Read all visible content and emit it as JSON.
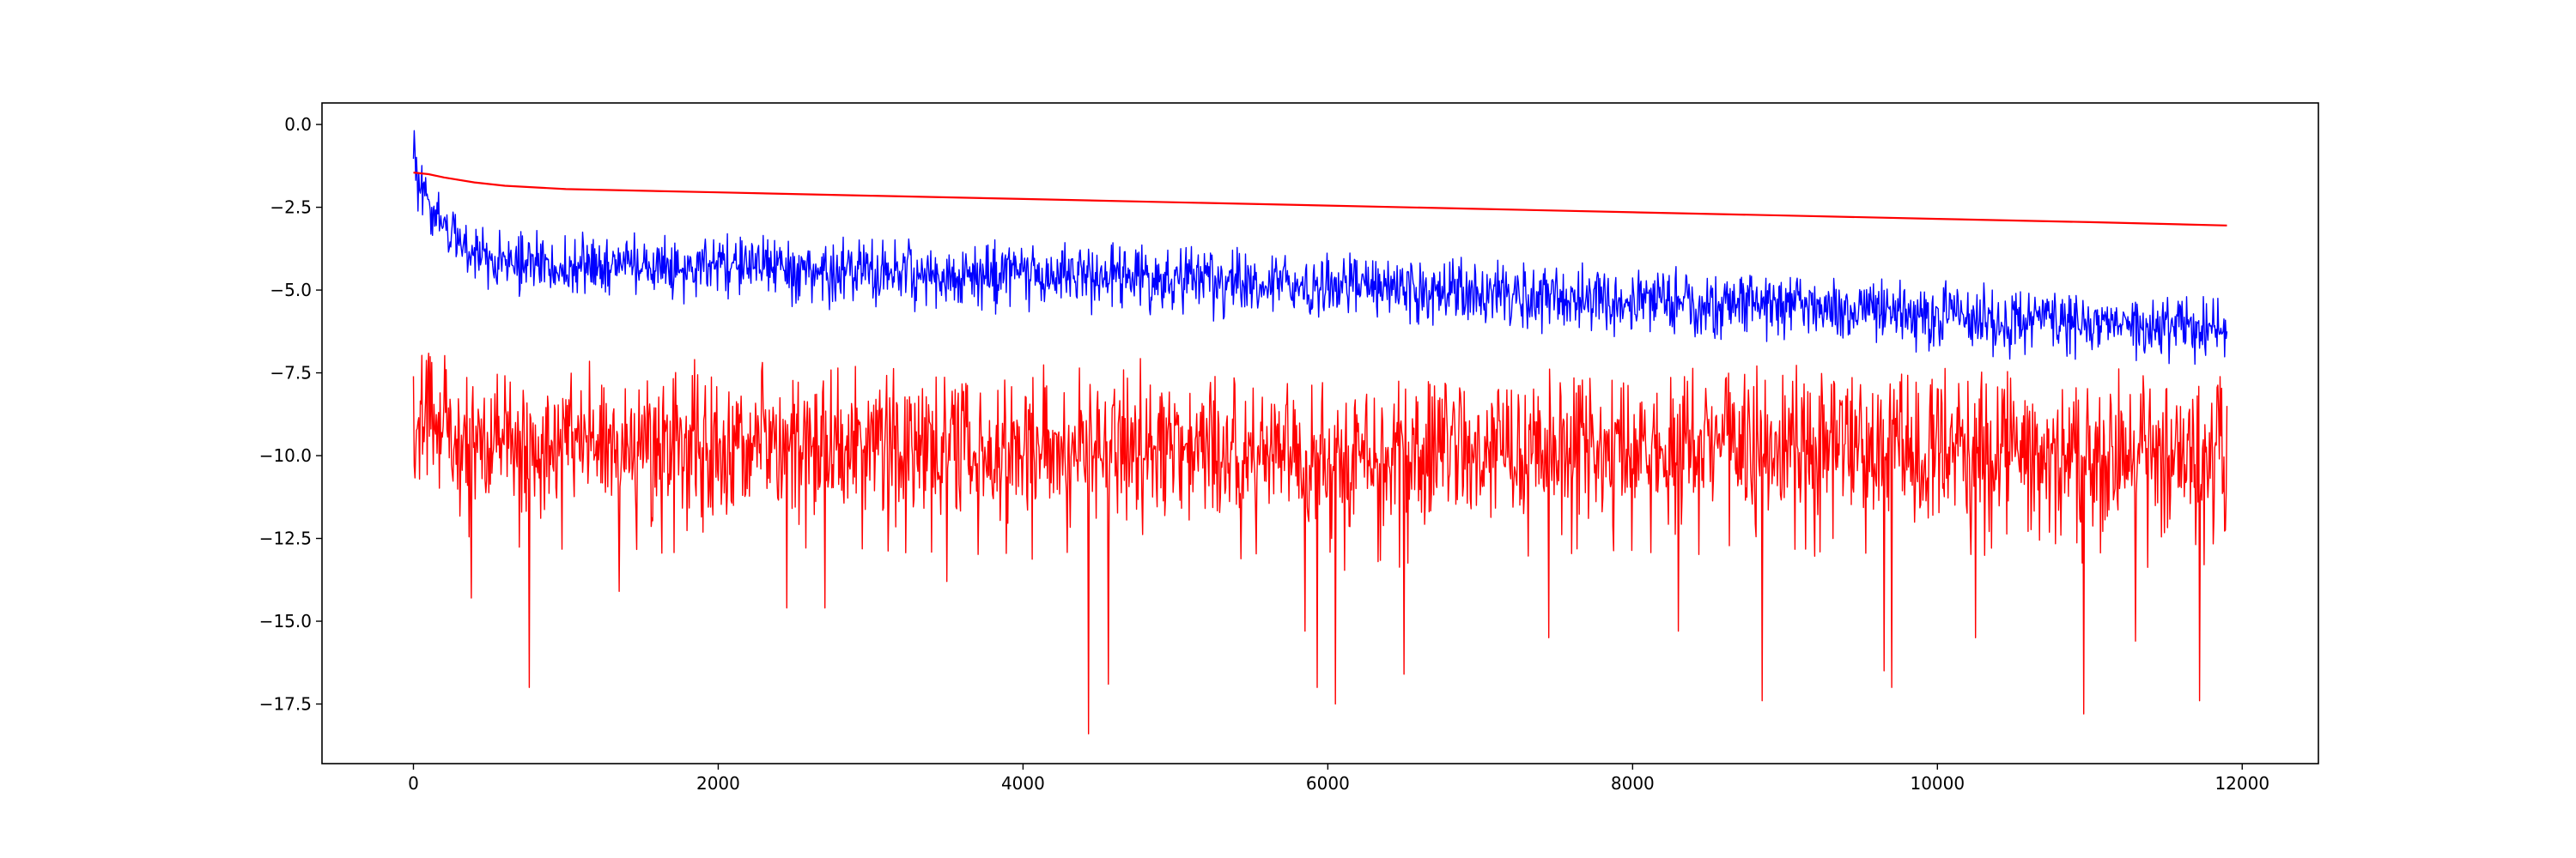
{
  "chart_data": {
    "type": "line",
    "title": "",
    "xlabel": "",
    "ylabel": "",
    "xlim": [
      -600,
      12500
    ],
    "ylim": [
      -19.3,
      0.65
    ],
    "grid": false,
    "legend": "none",
    "x_ticks": [
      {
        "value": 0,
        "label": "0"
      },
      {
        "value": 2000,
        "label": "2000"
      },
      {
        "value": 4000,
        "label": "4000"
      },
      {
        "value": 6000,
        "label": "6000"
      },
      {
        "value": 8000,
        "label": "8000"
      },
      {
        "value": 10000,
        "label": "10000"
      },
      {
        "value": 12000,
        "label": "12000"
      }
    ],
    "y_ticks": [
      {
        "value": 0,
        "label": "0.0"
      },
      {
        "value": -2.5,
        "label": "−2.5"
      },
      {
        "value": -5,
        "label": "−5.0"
      },
      {
        "value": -7.5,
        "label": "−7.5"
      },
      {
        "value": -10,
        "label": "−10.0"
      },
      {
        "value": -12.5,
        "label": "−12.5"
      },
      {
        "value": -15,
        "label": "−15.0"
      },
      {
        "value": -17.5,
        "label": "−17.5"
      }
    ],
    "series": [
      {
        "color": "#0000ff",
        "description": "noisy blue series, rapid initial drop then slow decline",
        "x": [
          0,
          50,
          100,
          200,
          300,
          400,
          500,
          700,
          1000,
          1500,
          2000,
          2500,
          3000,
          3500,
          4000,
          4500,
          5000,
          5500,
          6000,
          6500,
          7000,
          7500,
          8000,
          8500,
          9000,
          9500,
          10000,
          10500,
          11000,
          11500,
          11900
        ],
        "mean": [
          -0.8,
          -1.8,
          -2.4,
          -3.1,
          -3.5,
          -3.8,
          -4.0,
          -4.2,
          -4.3,
          -4.3,
          -4.3,
          -4.3,
          -4.5,
          -4.5,
          -4.6,
          -4.6,
          -4.7,
          -4.8,
          -4.9,
          -5.0,
          -5.1,
          -5.2,
          -5.3,
          -5.4,
          -5.5,
          -5.6,
          -5.8,
          -5.9,
          -6.0,
          -6.1,
          -6.1
        ],
        "band_low": [
          -2.5,
          -3.0,
          -3.4,
          -4.1,
          -4.5,
          -4.9,
          -5.1,
          -5.3,
          -5.4,
          -5.4,
          -5.5,
          -5.5,
          -5.7,
          -5.7,
          -5.8,
          -5.8,
          -5.9,
          -6.0,
          -6.1,
          -6.2,
          -6.3,
          -6.4,
          -6.5,
          -6.6,
          -6.7,
          -6.8,
          -7.0,
          -7.1,
          -7.2,
          -7.3,
          -7.3
        ],
        "band_high": [
          -0.2,
          -0.6,
          -1.3,
          -2.3,
          -2.7,
          -2.9,
          -3.0,
          -3.1,
          -3.2,
          -3.2,
          -3.2,
          -3.2,
          -3.3,
          -3.4,
          -3.5,
          -3.5,
          -3.6,
          -3.7,
          -3.8,
          -3.9,
          -4.0,
          -4.1,
          -4.2,
          -4.3,
          -4.4,
          -4.5,
          -4.7,
          -4.8,
          -4.9,
          -5.0,
          -5.0
        ],
        "n_points": 11900
      },
      {
        "color": "#ff0000",
        "description": "smooth red curve, slow steady decline",
        "x": [
          0,
          100,
          200,
          400,
          600,
          1000,
          2000,
          3000,
          4000,
          5000,
          6000,
          7000,
          8000,
          9000,
          10000,
          11000,
          11900
        ],
        "y": [
          -1.45,
          -1.5,
          -1.6,
          -1.75,
          -1.85,
          -1.95,
          -2.05,
          -2.15,
          -2.25,
          -2.35,
          -2.45,
          -2.55,
          -2.65,
          -2.75,
          -2.85,
          -2.95,
          -3.05
        ]
      },
      {
        "color": "#ff0000",
        "description": "noisy red series around -10 with deep downward spikes",
        "x": [
          0,
          1000,
          2000,
          3000,
          4000,
          5000,
          6000,
          7000,
          8000,
          9000,
          10000,
          11000,
          11900
        ],
        "mean": [
          -9.2,
          -9.8,
          -9.6,
          -9.7,
          -9.9,
          -9.8,
          -10.1,
          -10.0,
          -9.8,
          -9.7,
          -9.9,
          -10.0,
          -10.1
        ],
        "band_low": [
          -12.5,
          -13.0,
          -13.0,
          -13.0,
          -13.2,
          -13.0,
          -13.5,
          -13.3,
          -13.0,
          -13.0,
          -13.2,
          -13.5,
          -13.6
        ],
        "band_high": [
          -6.8,
          -7.8,
          -7.5,
          -7.6,
          -7.7,
          -7.6,
          -7.9,
          -7.8,
          -7.6,
          -7.5,
          -7.7,
          -7.8,
          -7.9
        ],
        "spikes": [
          {
            "x": 380,
            "y": -14.3
          },
          {
            "x": 760,
            "y": -17.0
          },
          {
            "x": 1350,
            "y": -14.1
          },
          {
            "x": 2450,
            "y": -14.6
          },
          {
            "x": 2700,
            "y": -14.6
          },
          {
            "x": 3500,
            "y": -13.8
          },
          {
            "x": 4430,
            "y": -18.4
          },
          {
            "x": 4560,
            "y": -16.9
          },
          {
            "x": 5850,
            "y": -15.3
          },
          {
            "x": 5930,
            "y": -17.0
          },
          {
            "x": 6050,
            "y": -17.5
          },
          {
            "x": 6500,
            "y": -16.6
          },
          {
            "x": 7450,
            "y": -15.5
          },
          {
            "x": 8300,
            "y": -15.3
          },
          {
            "x": 8850,
            "y": -17.4
          },
          {
            "x": 9650,
            "y": -16.5
          },
          {
            "x": 9700,
            "y": -17.0
          },
          {
            "x": 10250,
            "y": -15.5
          },
          {
            "x": 10960,
            "y": -17.8
          },
          {
            "x": 11300,
            "y": -15.6
          },
          {
            "x": 11720,
            "y": -17.4
          }
        ],
        "n_points": 11900
      }
    ]
  }
}
